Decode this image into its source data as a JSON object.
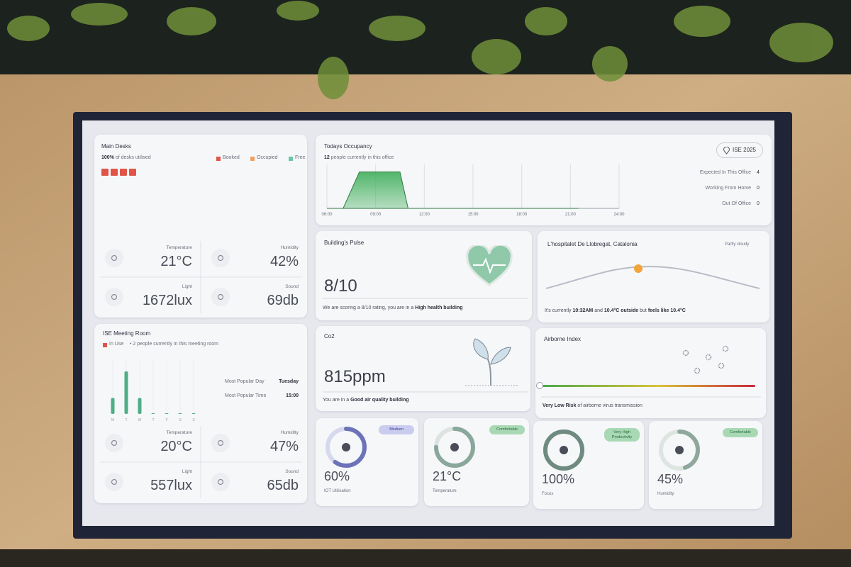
{
  "main_desks": {
    "title": "Main Desks",
    "utilisation_value": "100%",
    "utilisation_text": "of desks utilised",
    "legend": [
      {
        "label": "Booked",
        "color": "#e05548"
      },
      {
        "label": "Occupied",
        "color": "#f0a060"
      },
      {
        "label": "Free",
        "color": "#6cc5a6"
      }
    ],
    "metrics": [
      {
        "label": "Temperature",
        "value": "21°C"
      },
      {
        "label": "Humidity",
        "value": "42%"
      },
      {
        "label": "Light",
        "value": "1672lux"
      },
      {
        "label": "Sound",
        "value": "69db"
      }
    ]
  },
  "meeting_room": {
    "title": "ISE Meeting Room",
    "status": "In Use",
    "status_text": "• 2 people currently in this meeting room",
    "chart": {
      "days": [
        "M",
        "T",
        "W",
        "T",
        "F",
        "S",
        "S"
      ],
      "values": [
        3,
        8,
        3,
        0,
        0,
        0,
        0
      ],
      "ylim": [
        0,
        10
      ],
      "color": "#4fae84"
    },
    "stats": [
      {
        "label": "Most Popular Day",
        "value": "Tuesday"
      },
      {
        "label": "Most Popular Time",
        "value": "15:00"
      }
    ],
    "metrics": [
      {
        "label": "Temperature",
        "value": "20°C"
      },
      {
        "label": "Humidity",
        "value": "47%"
      },
      {
        "label": "Light",
        "value": "557lux"
      },
      {
        "label": "Sound",
        "value": "65db"
      }
    ]
  },
  "occupancy": {
    "title": "Todays Occupancy",
    "count": "12",
    "count_text": "people currently in this office",
    "badge": "ISE 2025",
    "chart": {
      "x": [
        6,
        7,
        8,
        10.5,
        11,
        21.5
      ],
      "values": [
        0,
        0,
        12,
        12,
        0,
        0
      ],
      "xlim": [
        6,
        24
      ],
      "ylim": [
        0,
        14
      ],
      "xticks": [
        {
          "value": 6,
          "label": "06:00"
        },
        {
          "value": 9,
          "label": "09:00"
        },
        {
          "value": 12,
          "label": "12:00"
        },
        {
          "value": 15,
          "label": "15:00"
        },
        {
          "value": 18,
          "label": "18:00"
        },
        {
          "value": 21,
          "label": "21:00"
        },
        {
          "value": 24,
          "label": "24:00"
        }
      ],
      "color": "#3fae5a"
    },
    "stats": [
      {
        "label": "Expected In This Office",
        "value": "4"
      },
      {
        "label": "Working From Home",
        "value": "0"
      },
      {
        "label": "Out Of Office",
        "value": "0"
      }
    ]
  },
  "pulse": {
    "title": "Building's Pulse",
    "score": "8/10",
    "text": "We are scoring a 8/10 rating, you are in a",
    "text_bold": "High health building"
  },
  "weather": {
    "location": "L'hospitalet De Llobregat, Catalonia",
    "condition": "Partly cloudy",
    "parts": [
      "It's currently",
      "10:32AM",
      "and",
      "10.4°C outside",
      "but",
      "feels like 10.4°C"
    ]
  },
  "co2": {
    "title": "Co2",
    "value": "815ppm",
    "text": "You are in a",
    "text_bold": "Good air quality building"
  },
  "airborne": {
    "title": "Airborne Index",
    "risk": "Very Low Risk",
    "text": "of airborne virus transmission"
  },
  "gauges": [
    {
      "value": 60,
      "value_label": "60%",
      "label": "IOT Utilisation",
      "badge": "Medium"
    },
    {
      "value_label": "21°C",
      "label": "Temperature",
      "badge": "Comfortable"
    },
    {
      "value": 100,
      "value_label": "100%",
      "label": "Focus",
      "badge": "Very High Productivity"
    },
    {
      "value": 45,
      "value_label": "45%",
      "label": "Humidity",
      "badge": "Comfortable"
    }
  ]
}
